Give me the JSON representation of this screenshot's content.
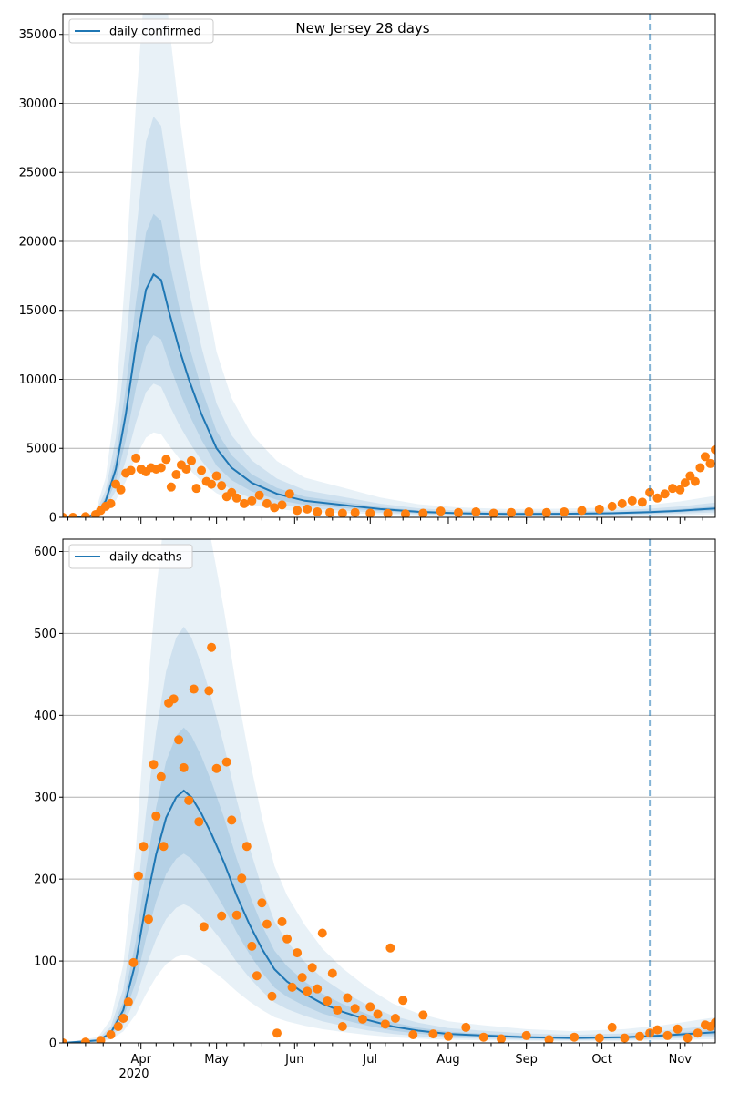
{
  "figure": {
    "title": "New Jersey 28 days",
    "year_label": "2020"
  },
  "chart_data": [
    {
      "type": "line",
      "legend": "daily confirmed",
      "legend_position": "top-left",
      "grid": "y",
      "ylim": [
        0,
        36500
      ],
      "yticks": [
        0,
        5000,
        10000,
        15000,
        20000,
        25000,
        30000,
        35000
      ],
      "x_axis": {
        "type": "date",
        "start": "2020-03-01",
        "end": "2020-11-15",
        "month_ticks": [
          "Apr",
          "May",
          "Jun",
          "Jul",
          "Aug",
          "Sep",
          "Oct",
          "Nov"
        ]
      },
      "vline_date": "2020-10-20",
      "colors": {
        "line": "#1f77b4",
        "points": "#ff7f0e",
        "band": "#1f77b4"
      },
      "series": [
        {
          "name": "daily confirmed",
          "kind": "line",
          "points": [
            [
              "2020-03-01",
              0
            ],
            [
              "2020-03-10",
              40
            ],
            [
              "2020-03-14",
              200
            ],
            [
              "2020-03-18",
              1200
            ],
            [
              "2020-03-22",
              3500
            ],
            [
              "2020-03-26",
              7500
            ],
            [
              "2020-03-30",
              12500
            ],
            [
              "2020-04-03",
              16500
            ],
            [
              "2020-04-06",
              17600
            ],
            [
              "2020-04-09",
              17200
            ],
            [
              "2020-04-12",
              15000
            ],
            [
              "2020-04-16",
              12300
            ],
            [
              "2020-04-20",
              10000
            ],
            [
              "2020-04-25",
              7500
            ],
            [
              "2020-05-01",
              5000
            ],
            [
              "2020-05-07",
              3600
            ],
            [
              "2020-05-15",
              2500
            ],
            [
              "2020-05-25",
              1700
            ],
            [
              "2020-06-05",
              1200
            ],
            [
              "2020-06-20",
              900
            ],
            [
              "2020-07-05",
              600
            ],
            [
              "2020-07-20",
              400
            ],
            [
              "2020-08-05",
              300
            ],
            [
              "2020-08-25",
              250
            ],
            [
              "2020-09-15",
              260
            ],
            [
              "2020-10-05",
              300
            ],
            [
              "2020-10-20",
              380
            ],
            [
              "2020-11-01",
              480
            ],
            [
              "2020-11-15",
              650
            ]
          ]
        },
        {
          "name": "observed",
          "kind": "points",
          "points": [
            [
              "2020-03-01",
              0
            ],
            [
              "2020-03-05",
              0
            ],
            [
              "2020-03-10",
              50
            ],
            [
              "2020-03-14",
              200
            ],
            [
              "2020-03-16",
              500
            ],
            [
              "2020-03-18",
              800
            ],
            [
              "2020-03-20",
              1000
            ],
            [
              "2020-03-22",
              2400
            ],
            [
              "2020-03-24",
              2000
            ],
            [
              "2020-03-26",
              3200
            ],
            [
              "2020-03-28",
              3400
            ],
            [
              "2020-03-30",
              4300
            ],
            [
              "2020-04-01",
              3500
            ],
            [
              "2020-04-03",
              3300
            ],
            [
              "2020-04-05",
              3600
            ],
            [
              "2020-04-07",
              3500
            ],
            [
              "2020-04-09",
              3600
            ],
            [
              "2020-04-11",
              4200
            ],
            [
              "2020-04-13",
              2200
            ],
            [
              "2020-04-15",
              3100
            ],
            [
              "2020-04-17",
              3800
            ],
            [
              "2020-04-19",
              3500
            ],
            [
              "2020-04-21",
              4100
            ],
            [
              "2020-04-23",
              2100
            ],
            [
              "2020-04-25",
              3400
            ],
            [
              "2020-04-27",
              2600
            ],
            [
              "2020-04-29",
              2400
            ],
            [
              "2020-05-01",
              3000
            ],
            [
              "2020-05-03",
              2300
            ],
            [
              "2020-05-05",
              1500
            ],
            [
              "2020-05-07",
              1800
            ],
            [
              "2020-05-09",
              1400
            ],
            [
              "2020-05-12",
              1000
            ],
            [
              "2020-05-15",
              1200
            ],
            [
              "2020-05-18",
              1600
            ],
            [
              "2020-05-21",
              1000
            ],
            [
              "2020-05-24",
              700
            ],
            [
              "2020-05-27",
              900
            ],
            [
              "2020-05-30",
              1700
            ],
            [
              "2020-06-02",
              500
            ],
            [
              "2020-06-06",
              600
            ],
            [
              "2020-06-10",
              400
            ],
            [
              "2020-06-15",
              350
            ],
            [
              "2020-06-20",
              300
            ],
            [
              "2020-06-25",
              350
            ],
            [
              "2020-07-01",
              300
            ],
            [
              "2020-07-08",
              280
            ],
            [
              "2020-07-15",
              250
            ],
            [
              "2020-07-22",
              300
            ],
            [
              "2020-07-29",
              450
            ],
            [
              "2020-08-05",
              350
            ],
            [
              "2020-08-12",
              400
            ],
            [
              "2020-08-19",
              300
            ],
            [
              "2020-08-26",
              350
            ],
            [
              "2020-09-02",
              400
            ],
            [
              "2020-09-09",
              350
            ],
            [
              "2020-09-16",
              400
            ],
            [
              "2020-09-23",
              500
            ],
            [
              "2020-09-30",
              600
            ],
            [
              "2020-10-05",
              800
            ],
            [
              "2020-10-09",
              1000
            ],
            [
              "2020-10-13",
              1200
            ],
            [
              "2020-10-17",
              1100
            ],
            [
              "2020-10-20",
              1800
            ],
            [
              "2020-10-23",
              1400
            ],
            [
              "2020-10-26",
              1700
            ],
            [
              "2020-10-29",
              2100
            ],
            [
              "2020-11-01",
              2000
            ],
            [
              "2020-11-03",
              2500
            ],
            [
              "2020-11-05",
              3000
            ],
            [
              "2020-11-07",
              2600
            ],
            [
              "2020-11-09",
              3600
            ],
            [
              "2020-11-11",
              4400
            ],
            [
              "2020-11-13",
              3900
            ],
            [
              "2020-11-15",
              4900
            ]
          ]
        }
      ]
    },
    {
      "type": "line",
      "legend": "daily deaths",
      "legend_position": "top-left",
      "grid": "y",
      "ylim": [
        0,
        615
      ],
      "yticks": [
        0,
        100,
        200,
        300,
        400,
        500,
        600
      ],
      "x_axis": {
        "type": "date",
        "start": "2020-03-01",
        "end": "2020-11-15",
        "month_ticks": [
          "Apr",
          "May",
          "Jun",
          "Jul",
          "Aug",
          "Sep",
          "Oct",
          "Nov"
        ]
      },
      "vline_date": "2020-10-20",
      "colors": {
        "line": "#1f77b4",
        "points": "#ff7f0e",
        "band": "#1f77b4"
      },
      "series": [
        {
          "name": "daily deaths",
          "kind": "line",
          "points": [
            [
              "2020-03-01",
              0
            ],
            [
              "2020-03-15",
              3
            ],
            [
              "2020-03-20",
              12
            ],
            [
              "2020-03-25",
              40
            ],
            [
              "2020-03-30",
              100
            ],
            [
              "2020-04-03",
              170
            ],
            [
              "2020-04-07",
              230
            ],
            [
              "2020-04-11",
              275
            ],
            [
              "2020-04-15",
              300
            ],
            [
              "2020-04-18",
              308
            ],
            [
              "2020-04-21",
              300
            ],
            [
              "2020-04-25",
              280
            ],
            [
              "2020-04-29",
              255
            ],
            [
              "2020-05-04",
              220
            ],
            [
              "2020-05-09",
              180
            ],
            [
              "2020-05-14",
              145
            ],
            [
              "2020-05-19",
              115
            ],
            [
              "2020-05-24",
              90
            ],
            [
              "2020-05-29",
              75
            ],
            [
              "2020-06-05",
              60
            ],
            [
              "2020-06-12",
              48
            ],
            [
              "2020-06-20",
              38
            ],
            [
              "2020-06-30",
              28
            ],
            [
              "2020-07-10",
              20
            ],
            [
              "2020-07-20",
              15
            ],
            [
              "2020-08-01",
              11
            ],
            [
              "2020-08-15",
              9
            ],
            [
              "2020-09-01",
              7
            ],
            [
              "2020-09-20",
              6
            ],
            [
              "2020-10-10",
              7
            ],
            [
              "2020-10-25",
              9
            ],
            [
              "2020-11-15",
              13
            ]
          ]
        },
        {
          "name": "observed",
          "kind": "points",
          "points": [
            [
              "2020-03-01",
              0
            ],
            [
              "2020-03-10",
              1
            ],
            [
              "2020-03-16",
              3
            ],
            [
              "2020-03-20",
              10
            ],
            [
              "2020-03-23",
              20
            ],
            [
              "2020-03-25",
              30
            ],
            [
              "2020-03-27",
              50
            ],
            [
              "2020-03-29",
              98
            ],
            [
              "2020-03-31",
              204
            ],
            [
              "2020-04-02",
              240
            ],
            [
              "2020-04-04",
              151
            ],
            [
              "2020-04-06",
              340
            ],
            [
              "2020-04-07",
              277
            ],
            [
              "2020-04-09",
              325
            ],
            [
              "2020-04-10",
              240
            ],
            [
              "2020-04-12",
              415
            ],
            [
              "2020-04-14",
              420
            ],
            [
              "2020-04-16",
              370
            ],
            [
              "2020-04-18",
              336
            ],
            [
              "2020-04-20",
              296
            ],
            [
              "2020-04-22",
              432
            ],
            [
              "2020-04-24",
              270
            ],
            [
              "2020-04-26",
              142
            ],
            [
              "2020-04-28",
              430
            ],
            [
              "2020-04-29",
              483
            ],
            [
              "2020-05-01",
              335
            ],
            [
              "2020-05-03",
              155
            ],
            [
              "2020-05-05",
              343
            ],
            [
              "2020-05-07",
              272
            ],
            [
              "2020-05-09",
              156
            ],
            [
              "2020-05-11",
              201
            ],
            [
              "2020-05-13",
              240
            ],
            [
              "2020-05-15",
              118
            ],
            [
              "2020-05-17",
              82
            ],
            [
              "2020-05-19",
              171
            ],
            [
              "2020-05-21",
              145
            ],
            [
              "2020-05-23",
              57
            ],
            [
              "2020-05-25",
              12
            ],
            [
              "2020-05-27",
              148
            ],
            [
              "2020-05-29",
              127
            ],
            [
              "2020-05-31",
              68
            ],
            [
              "2020-06-02",
              110
            ],
            [
              "2020-06-04",
              80
            ],
            [
              "2020-06-06",
              63
            ],
            [
              "2020-06-08",
              92
            ],
            [
              "2020-06-10",
              66
            ],
            [
              "2020-06-12",
              134
            ],
            [
              "2020-06-14",
              51
            ],
            [
              "2020-06-16",
              85
            ],
            [
              "2020-06-18",
              40
            ],
            [
              "2020-06-20",
              20
            ],
            [
              "2020-06-22",
              55
            ],
            [
              "2020-06-25",
              42
            ],
            [
              "2020-06-28",
              29
            ],
            [
              "2020-07-01",
              44
            ],
            [
              "2020-07-04",
              35
            ],
            [
              "2020-07-07",
              23
            ],
            [
              "2020-07-09",
              116
            ],
            [
              "2020-07-11",
              30
            ],
            [
              "2020-07-14",
              52
            ],
            [
              "2020-07-18",
              10
            ],
            [
              "2020-07-22",
              34
            ],
            [
              "2020-07-26",
              11
            ],
            [
              "2020-08-01",
              8
            ],
            [
              "2020-08-08",
              19
            ],
            [
              "2020-08-15",
              7
            ],
            [
              "2020-08-22",
              5
            ],
            [
              "2020-09-01",
              9
            ],
            [
              "2020-09-10",
              4
            ],
            [
              "2020-09-20",
              7
            ],
            [
              "2020-09-30",
              6
            ],
            [
              "2020-10-05",
              19
            ],
            [
              "2020-10-10",
              6
            ],
            [
              "2020-10-16",
              8
            ],
            [
              "2020-10-20",
              12
            ],
            [
              "2020-10-23",
              16
            ],
            [
              "2020-10-27",
              9
            ],
            [
              "2020-10-31",
              17
            ],
            [
              "2020-11-04",
              6
            ],
            [
              "2020-11-08",
              12
            ],
            [
              "2020-11-11",
              22
            ],
            [
              "2020-11-13",
              20
            ],
            [
              "2020-11-15",
              25
            ]
          ]
        }
      ]
    }
  ]
}
